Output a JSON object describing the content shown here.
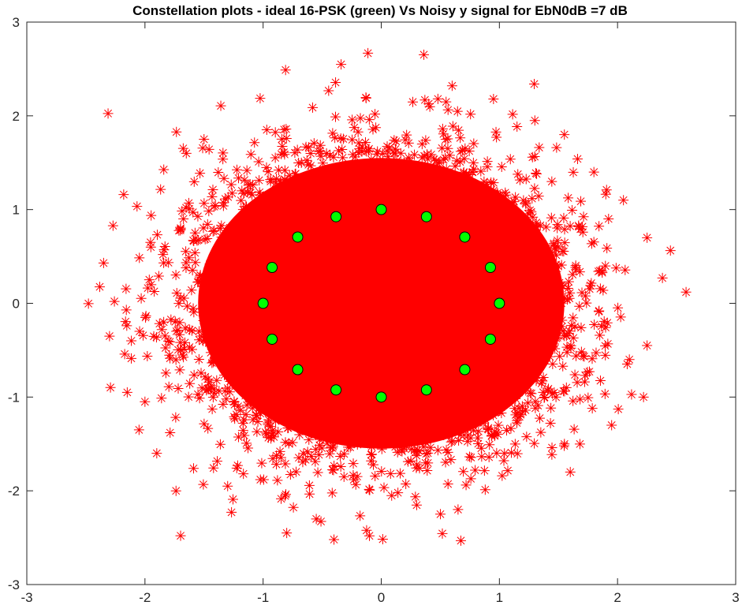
{
  "chart_data": {
    "type": "scatter",
    "title": "Constellation plots - ideal 16-PSK (green) Vs Noisy y signal for EbN0dB =7 dB",
    "xlabel": "",
    "ylabel": "",
    "xlim": [
      -3,
      3
    ],
    "ylim": [
      -3,
      3
    ],
    "x_ticks": [
      -3,
      -2,
      -1,
      0,
      1,
      2,
      3
    ],
    "y_ticks": [
      -3,
      -2,
      -1,
      0,
      1,
      2,
      3
    ],
    "x_tick_labels": [
      "-3",
      "-2",
      "-1",
      "0",
      "1",
      "2",
      "3"
    ],
    "y_tick_labels": [
      "-3",
      "-2",
      "-1",
      "0",
      "1",
      "2",
      "3"
    ],
    "grid": false,
    "legend": "none",
    "series": [
      {
        "marker": "asterisk",
        "color": "#ff0000",
        "noise_std": 0.5,
        "sample_count": 4000,
        "outliers": [
          [
            -2.35,
            0.43
          ],
          [
            -2.3,
            -0.35
          ],
          [
            -2.18,
            1.16
          ],
          [
            -2.15,
            -0.95
          ],
          [
            -2.05,
            -1.35
          ],
          [
            -1.95,
            0.6
          ],
          [
            -1.9,
            -1.6
          ],
          [
            -0.8,
            -2.45
          ],
          [
            -0.55,
            -2.3
          ],
          [
            -0.4,
            -2.52
          ],
          [
            -0.1,
            -2.48
          ],
          [
            0.6,
            2.32
          ],
          [
            0.95,
            2.18
          ],
          [
            1.3,
            1.95
          ],
          [
            1.55,
            1.8
          ],
          [
            2.05,
            1.1
          ],
          [
            2.25,
            0.7
          ],
          [
            2.38,
            0.27
          ],
          [
            2.58,
            0.12
          ],
          [
            2.25,
            -0.45
          ],
          [
            2.22,
            -1.0
          ],
          [
            1.95,
            -1.3
          ],
          [
            1.6,
            -1.8
          ],
          [
            0.65,
            -2.2
          ],
          [
            -1.5,
            1.75
          ],
          [
            -1.65,
            1.6
          ],
          [
            2.1,
            -0.6
          ],
          [
            -2.0,
            -1.05
          ],
          [
            1.8,
            1.4
          ],
          [
            -1.3,
            -1.95
          ]
        ]
      },
      {
        "marker": "circle",
        "color": "#00ff00",
        "edge_color": "#000000",
        "points": [
          [
            1.0,
            0.0
          ],
          [
            0.9239,
            0.3827
          ],
          [
            0.7071,
            0.7071
          ],
          [
            0.3827,
            0.9239
          ],
          [
            0.0,
            1.0
          ],
          [
            -0.3827,
            0.9239
          ],
          [
            -0.7071,
            0.7071
          ],
          [
            -0.9239,
            0.3827
          ],
          [
            -1.0,
            0.0
          ],
          [
            -0.9239,
            -0.3827
          ],
          [
            -0.7071,
            -0.7071
          ],
          [
            -0.3827,
            -0.9239
          ],
          [
            0.0,
            -1.0
          ],
          [
            0.3827,
            -0.9239
          ],
          [
            0.7071,
            -0.7071
          ],
          [
            0.9239,
            -0.3827
          ]
        ]
      }
    ]
  }
}
